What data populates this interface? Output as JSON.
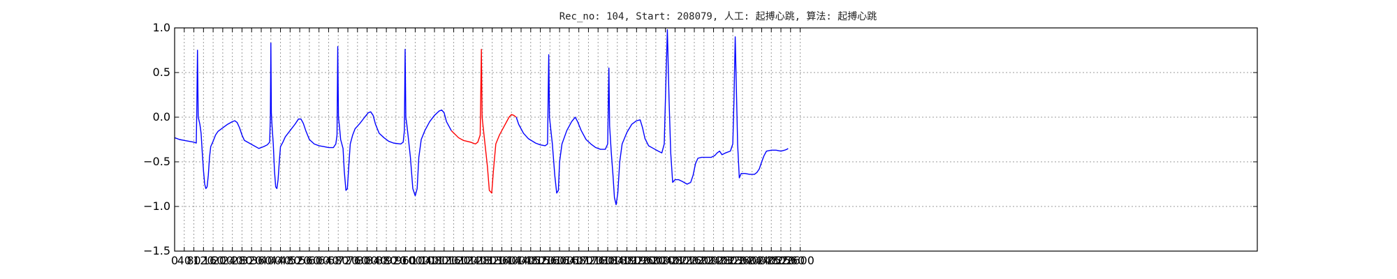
{
  "chart_data": {
    "type": "line",
    "title": "Rec_no: 104, Start: 208079, 人工: 起搏心跳, 算法: 起搏心跳",
    "xlabel": "",
    "ylabel": "",
    "xlim": [
      0,
      4500
    ],
    "ylim": [
      -1.5,
      1.0
    ],
    "y_ticks": [
      -1.5,
      -1.0,
      -0.5,
      0.0,
      0.5,
      1.0
    ],
    "y_tick_labels": [
      "−1.5",
      "−1.0",
      "−0.5",
      "0.0",
      "0.5",
      "1.0"
    ],
    "x_ticks": [
      0,
      40,
      80,
      120,
      160,
      200,
      240,
      280,
      320,
      360,
      400,
      440,
      480,
      520,
      560,
      600,
      640,
      680,
      720,
      760,
      800,
      840,
      880,
      920,
      960,
      1000,
      1040,
      1080,
      1120,
      1160,
      1200,
      1240,
      1280,
      1320,
      1360,
      1400,
      1440,
      1480,
      1520,
      1560,
      1600,
      1640,
      1680,
      1720,
      1760,
      1800,
      1840,
      1880,
      1920,
      1960,
      2000,
      2040,
      2080,
      2120,
      2160,
      2200,
      2240,
      2280,
      2320,
      2360,
      2400,
      2440,
      2480,
      2520,
      2560,
      2600
    ],
    "x_tick_labels": [
      "0",
      "40",
      "80",
      "120",
      "160",
      "200",
      "240",
      "280",
      "320",
      "360",
      "400",
      "440",
      "480",
      "520",
      "560",
      "600",
      "640",
      "680",
      "720",
      "760",
      "800",
      "840",
      "880",
      "920",
      "960",
      "1000",
      "1040",
      "1080",
      "1120",
      "1160",
      "1200",
      "1240",
      "1280",
      "1320",
      "1360",
      "1400",
      "1440",
      "1480",
      "1520",
      "1560",
      "1600",
      "1640",
      "1680",
      "1720",
      "1760",
      "1800",
      "1840",
      "1880",
      "1920",
      "1960",
      "2000",
      "2040",
      "2080",
      "2120",
      "2160",
      "2200",
      "2240",
      "2280",
      "2320",
      "2360",
      "2400",
      "2440",
      "2480",
      "2520",
      "2560",
      "2600"
    ],
    "grid": true,
    "highlight_range": [
      1180,
      1420
    ],
    "series": [
      {
        "color": "#0000ff",
        "highlight_color": "#ff0000",
        "points": [
          [
            0,
            -0.23
          ],
          [
            20,
            -0.25
          ],
          [
            40,
            -0.26
          ],
          [
            60,
            -0.27
          ],
          [
            80,
            -0.28
          ],
          [
            90,
            -0.29
          ],
          [
            92,
            0.05
          ],
          [
            95,
            0.75
          ],
          [
            98,
            0.0
          ],
          [
            100,
            -0.02
          ],
          [
            105,
            -0.08
          ],
          [
            110,
            -0.18
          ],
          [
            115,
            -0.4
          ],
          [
            120,
            -0.6
          ],
          [
            125,
            -0.75
          ],
          [
            130,
            -0.8
          ],
          [
            135,
            -0.78
          ],
          [
            140,
            -0.65
          ],
          [
            145,
            -0.45
          ],
          [
            150,
            -0.33
          ],
          [
            160,
            -0.27
          ],
          [
            170,
            -0.2
          ],
          [
            180,
            -0.16
          ],
          [
            200,
            -0.12
          ],
          [
            220,
            -0.08
          ],
          [
            240,
            -0.05
          ],
          [
            250,
            -0.04
          ],
          [
            260,
            -0.06
          ],
          [
            270,
            -0.12
          ],
          [
            280,
            -0.2
          ],
          [
            290,
            -0.26
          ],
          [
            310,
            -0.29
          ],
          [
            330,
            -0.32
          ],
          [
            350,
            -0.35
          ],
          [
            370,
            -0.33
          ],
          [
            385,
            -0.31
          ],
          [
            395,
            -0.28
          ],
          [
            398,
            0.0
          ],
          [
            400,
            0.83
          ],
          [
            402,
            0.05
          ],
          [
            405,
            -0.1
          ],
          [
            410,
            -0.3
          ],
          [
            415,
            -0.6
          ],
          [
            420,
            -0.78
          ],
          [
            425,
            -0.8
          ],
          [
            430,
            -0.7
          ],
          [
            435,
            -0.5
          ],
          [
            440,
            -0.33
          ],
          [
            450,
            -0.28
          ],
          [
            460,
            -0.22
          ],
          [
            480,
            -0.15
          ],
          [
            500,
            -0.08
          ],
          [
            515,
            -0.02
          ],
          [
            525,
            -0.02
          ],
          [
            535,
            -0.07
          ],
          [
            545,
            -0.15
          ],
          [
            560,
            -0.25
          ],
          [
            580,
            -0.3
          ],
          [
            600,
            -0.32
          ],
          [
            620,
            -0.33
          ],
          [
            640,
            -0.34
          ],
          [
            660,
            -0.34
          ],
          [
            670,
            -0.3
          ],
          [
            675,
            -0.2
          ],
          [
            678,
            0.79
          ],
          [
            681,
            0.0
          ],
          [
            685,
            -0.1
          ],
          [
            690,
            -0.25
          ],
          [
            700,
            -0.35
          ],
          [
            705,
            -0.6
          ],
          [
            712,
            -0.82
          ],
          [
            718,
            -0.8
          ],
          [
            725,
            -0.5
          ],
          [
            730,
            -0.3
          ],
          [
            740,
            -0.2
          ],
          [
            750,
            -0.13
          ],
          [
            770,
            -0.07
          ],
          [
            790,
            0.0
          ],
          [
            805,
            0.05
          ],
          [
            815,
            0.06
          ],
          [
            825,
            0.02
          ],
          [
            835,
            -0.08
          ],
          [
            850,
            -0.18
          ],
          [
            870,
            -0.23
          ],
          [
            890,
            -0.27
          ],
          [
            910,
            -0.29
          ],
          [
            940,
            -0.3
          ],
          [
            950,
            -0.28
          ],
          [
            955,
            -0.15
          ],
          [
            958,
            0.76
          ],
          [
            961,
            0.0
          ],
          [
            965,
            -0.08
          ],
          [
            970,
            -0.2
          ],
          [
            980,
            -0.45
          ],
          [
            990,
            -0.8
          ],
          [
            1000,
            -0.88
          ],
          [
            1008,
            -0.8
          ],
          [
            1015,
            -0.45
          ],
          [
            1025,
            -0.25
          ],
          [
            1040,
            -0.15
          ],
          [
            1060,
            -0.05
          ],
          [
            1080,
            0.02
          ],
          [
            1100,
            0.07
          ],
          [
            1110,
            0.08
          ],
          [
            1120,
            0.05
          ],
          [
            1130,
            -0.05
          ],
          [
            1150,
            -0.15
          ],
          [
            1180,
            -0.23
          ],
          [
            1200,
            -0.26
          ],
          [
            1230,
            -0.28
          ],
          [
            1250,
            -0.3
          ],
          [
            1260,
            -0.28
          ],
          [
            1270,
            -0.2
          ],
          [
            1275,
            0.76
          ],
          [
            1278,
            0.0
          ],
          [
            1282,
            -0.1
          ],
          [
            1290,
            -0.3
          ],
          [
            1300,
            -0.55
          ],
          [
            1308,
            -0.82
          ],
          [
            1318,
            -0.85
          ],
          [
            1325,
            -0.6
          ],
          [
            1335,
            -0.3
          ],
          [
            1350,
            -0.2
          ],
          [
            1370,
            -0.1
          ],
          [
            1390,
            0.0
          ],
          [
            1400,
            0.03
          ],
          [
            1410,
            0.02
          ],
          [
            1420,
            0.0
          ],
          [
            1430,
            -0.08
          ],
          [
            1450,
            -0.18
          ],
          [
            1470,
            -0.24
          ],
          [
            1500,
            -0.29
          ],
          [
            1520,
            -0.31
          ],
          [
            1540,
            -0.32
          ],
          [
            1550,
            -0.3
          ],
          [
            1555,
            0.7
          ],
          [
            1558,
            0.0
          ],
          [
            1562,
            -0.1
          ],
          [
            1570,
            -0.3
          ],
          [
            1580,
            -0.65
          ],
          [
            1588,
            -0.85
          ],
          [
            1595,
            -0.82
          ],
          [
            1600,
            -0.5
          ],
          [
            1610,
            -0.3
          ],
          [
            1630,
            -0.15
          ],
          [
            1650,
            -0.05
          ],
          [
            1665,
            0.0
          ],
          [
            1675,
            -0.05
          ],
          [
            1690,
            -0.15
          ],
          [
            1710,
            -0.25
          ],
          [
            1730,
            -0.3
          ],
          [
            1750,
            -0.34
          ],
          [
            1770,
            -0.36
          ],
          [
            1790,
            -0.36
          ],
          [
            1800,
            -0.3
          ],
          [
            1805,
            0.55
          ],
          [
            1808,
            -0.1
          ],
          [
            1815,
            -0.4
          ],
          [
            1822,
            -0.65
          ],
          [
            1828,
            -0.9
          ],
          [
            1835,
            -0.98
          ],
          [
            1842,
            -0.85
          ],
          [
            1850,
            -0.5
          ],
          [
            1860,
            -0.3
          ],
          [
            1880,
            -0.17
          ],
          [
            1900,
            -0.08
          ],
          [
            1920,
            -0.04
          ],
          [
            1935,
            -0.03
          ],
          [
            1945,
            -0.12
          ],
          [
            1955,
            -0.24
          ],
          [
            1970,
            -0.32
          ],
          [
            1990,
            -0.35
          ],
          [
            2010,
            -0.38
          ],
          [
            2025,
            -0.4
          ],
          [
            2035,
            -0.3
          ],
          [
            2042,
            0.4
          ],
          [
            2048,
            0.98
          ],
          [
            2055,
            0.2
          ],
          [
            2062,
            -0.4
          ],
          [
            2070,
            -0.73
          ],
          [
            2080,
            -0.7
          ],
          [
            2095,
            -0.7
          ],
          [
            2110,
            -0.72
          ],
          [
            2130,
            -0.75
          ],
          [
            2145,
            -0.73
          ],
          [
            2155,
            -0.65
          ],
          [
            2165,
            -0.52
          ],
          [
            2175,
            -0.46
          ],
          [
            2190,
            -0.45
          ],
          [
            2210,
            -0.45
          ],
          [
            2230,
            -0.45
          ],
          [
            2245,
            -0.43
          ],
          [
            2255,
            -0.4
          ],
          [
            2265,
            -0.38
          ],
          [
            2275,
            -0.42
          ],
          [
            2290,
            -0.4
          ],
          [
            2310,
            -0.38
          ],
          [
            2320,
            -0.3
          ],
          [
            2325,
            0.2
          ],
          [
            2330,
            0.9
          ],
          [
            2335,
            0.3
          ],
          [
            2340,
            -0.3
          ],
          [
            2347,
            -0.68
          ],
          [
            2355,
            -0.63
          ],
          [
            2370,
            -0.63
          ],
          [
            2390,
            -0.64
          ],
          [
            2410,
            -0.64
          ],
          [
            2420,
            -0.62
          ],
          [
            2430,
            -0.58
          ],
          [
            2440,
            -0.5
          ],
          [
            2450,
            -0.43
          ],
          [
            2460,
            -0.38
          ],
          [
            2480,
            -0.37
          ],
          [
            2500,
            -0.37
          ],
          [
            2520,
            -0.38
          ],
          [
            2535,
            -0.37
          ],
          [
            2545,
            -0.36
          ],
          [
            2550,
            -0.35
          ]
        ]
      }
    ]
  }
}
